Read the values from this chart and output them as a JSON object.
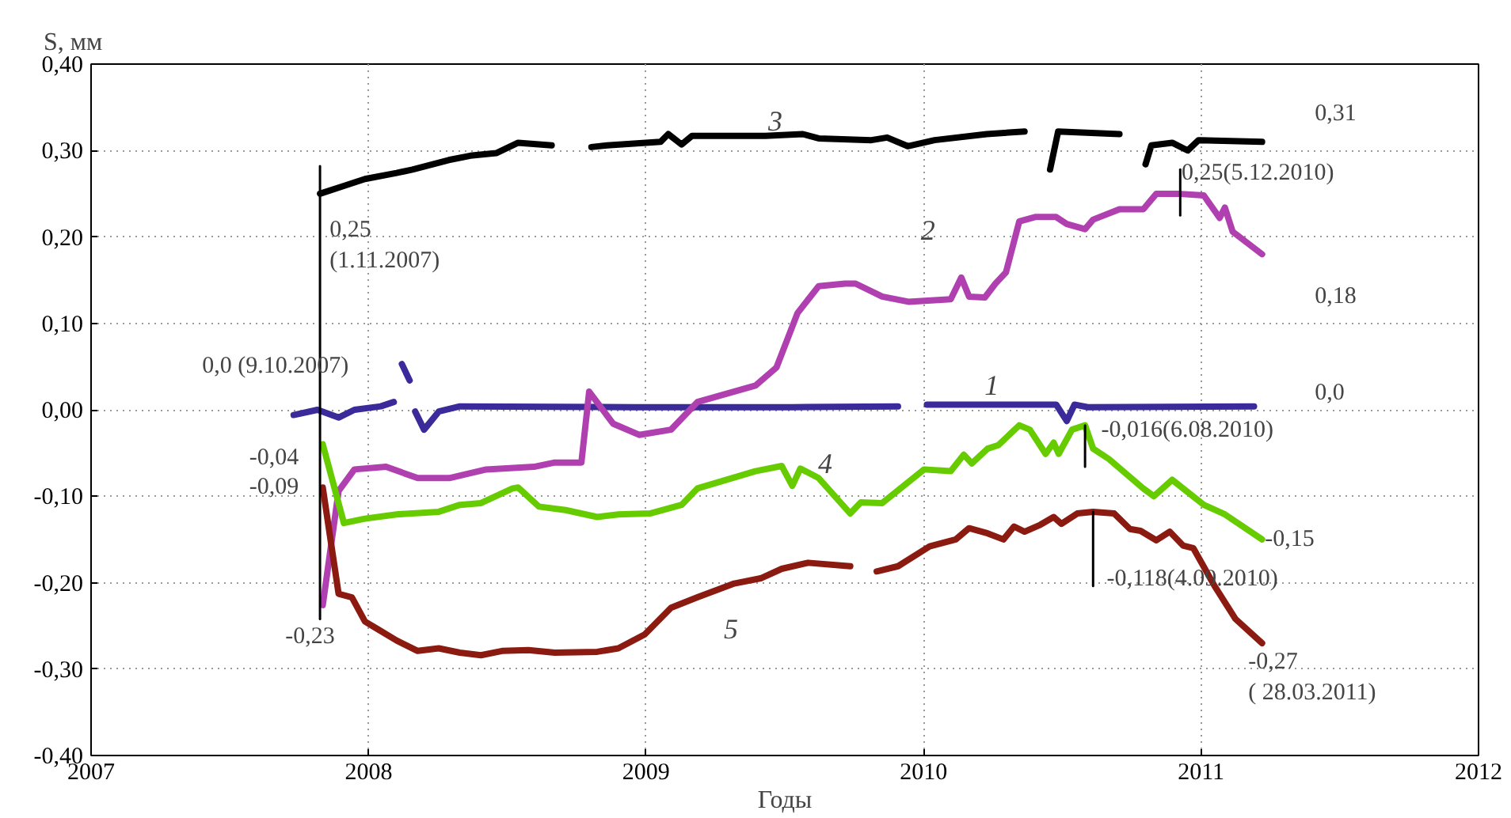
{
  "chart_data": {
    "type": "line",
    "xlabel": "Годы",
    "ylabel": "S, мм",
    "xlim": [
      2007,
      2012
    ],
    "xticks": [
      2007,
      2008,
      2009,
      2010,
      2011,
      2012
    ],
    "ylim": [
      -0.4,
      0.4
    ],
    "yticks": [
      {
        "value": -0.4,
        "label": "-0,40"
      },
      {
        "value": -0.3,
        "label": "-0,30"
      },
      {
        "value": -0.2,
        "label": "-0,20"
      },
      {
        "value": -0.1,
        "label": "-0,10"
      },
      {
        "value": 0,
        "label": "0,00"
      },
      {
        "value": 0.1,
        "label": "0,10"
      },
      {
        "value": 0.2,
        "label": "0,20"
      },
      {
        "value": 0.3,
        "label": "0,30"
      },
      {
        "value": 0.4,
        "label": "0,40"
      }
    ],
    "grid": true,
    "line_style": "solid",
    "marker": "none",
    "series": [
      {
        "color": "#3a2a9a",
        "x": [
          2007.73,
          2007.816,
          2007.892,
          2007.949,
          2008.044,
          2008.091,
          2008.105,
          2008.12,
          2008.148,
          2008.158,
          2008.168,
          2008.2,
          2008.253,
          2008.329,
          2008.957,
          2009.527,
          2009.908,
          2009.96,
          2010.012,
          2010.478,
          2010.516,
          2010.544,
          2010.592,
          2011.191
        ],
        "values": [
          -0.006,
          0.0,
          -0.009,
          0.0,
          0.004,
          0.009,
          null,
          0.053,
          0.034,
          null,
          -0.002,
          -0.023,
          -0.002,
          0.004,
          0.003,
          0.003,
          0.004,
          null,
          0.006,
          0.006,
          -0.013,
          0.006,
          0.003,
          0.004
        ]
      },
      {
        "color": "#b040b0",
        "x": [
          2007.835,
          2007.892,
          2007.949,
          2008.063,
          2008.177,
          2008.291,
          2008.424,
          2008.596,
          2008.671,
          2008.767,
          2008.795,
          2008.881,
          2008.975,
          2009.09,
          2009.185,
          2009.394,
          2009.47,
          2009.546,
          2009.622,
          2009.717,
          2009.755,
          2009.851,
          2009.945,
          2010.098,
          2010.136,
          2010.164,
          2010.221,
          2010.259,
          2010.297,
          2010.345,
          2010.402,
          2010.478,
          2010.516,
          2010.582,
          2010.611,
          2010.706,
          2010.792,
          2010.839,
          2010.915,
          2011.01,
          2011.067,
          2011.086,
          2011.114,
          2011.22
        ],
        "values": [
          -0.226,
          -0.094,
          -0.069,
          -0.066,
          -0.079,
          -0.079,
          -0.069,
          -0.066,
          -0.061,
          -0.061,
          0.021,
          -0.016,
          -0.029,
          -0.023,
          0.009,
          0.028,
          0.049,
          0.112,
          0.143,
          0.146,
          0.146,
          0.131,
          0.125,
          0.128,
          0.153,
          0.131,
          0.13,
          0.146,
          0.159,
          0.218,
          0.223,
          0.223,
          0.215,
          0.209,
          0.22,
          0.232,
          0.232,
          0.25,
          0.25,
          0.248,
          0.222,
          0.234,
          0.206,
          0.18
        ]
      },
      {
        "color": "#000000",
        "x": [
          2007.825,
          2007.911,
          2007.987,
          2008.101,
          2008.158,
          2008.289,
          2008.367,
          2008.46,
          2008.539,
          2008.66,
          2008.73,
          2008.803,
          2008.86,
          2009.052,
          2009.08,
          2009.128,
          2009.166,
          2009.43,
          2009.565,
          2009.622,
          2009.812,
          2009.869,
          2009.943,
          2010.04,
          2010.228,
          2010.364,
          2010.41,
          2010.456,
          2010.485,
          2010.706,
          2010.75,
          2010.8,
          2010.821,
          2010.896,
          2010.952,
          2010.991,
          2011.22
        ],
        "values": [
          0.25,
          0.259,
          0.267,
          0.274,
          0.278,
          0.289,
          0.294,
          0.297,
          0.309,
          0.306,
          null,
          0.304,
          0.306,
          0.31,
          0.319,
          0.307,
          0.317,
          0.317,
          0.319,
          0.314,
          0.312,
          0.315,
          0.305,
          0.312,
          0.319,
          0.322,
          null,
          0.278,
          0.322,
          0.319,
          null,
          0.284,
          0.306,
          0.309,
          0.3,
          0.312,
          0.31
        ]
      },
      {
        "color": "#66cc00",
        "x": [
          2007.835,
          2007.911,
          2007.987,
          2008.101,
          2008.253,
          2008.329,
          2008.405,
          2008.519,
          2008.539,
          2008.614,
          2008.71,
          2008.824,
          2008.9,
          2009.014,
          2009.128,
          2009.185,
          2009.394,
          2009.489,
          2009.527,
          2009.556,
          2009.622,
          2009.736,
          2009.774,
          2009.851,
          2010.002,
          2010.098,
          2010.145,
          2010.174,
          2010.231,
          2010.269,
          2010.345,
          2010.383,
          2010.44,
          2010.469,
          2010.487,
          2010.535,
          2010.582,
          2010.611,
          2010.668,
          2010.792,
          2010.83,
          2010.896,
          2011.01,
          2011.086,
          2011.22
        ],
        "values": [
          -0.04,
          -0.131,
          -0.126,
          -0.121,
          -0.118,
          -0.11,
          -0.108,
          -0.091,
          -0.09,
          -0.112,
          -0.116,
          -0.124,
          -0.121,
          -0.12,
          -0.11,
          -0.091,
          -0.071,
          -0.065,
          -0.088,
          -0.068,
          -0.079,
          -0.12,
          -0.107,
          -0.108,
          -0.069,
          -0.071,
          -0.052,
          -0.062,
          -0.045,
          -0.041,
          -0.018,
          -0.023,
          -0.051,
          -0.038,
          -0.051,
          -0.023,
          -0.018,
          -0.045,
          -0.057,
          -0.091,
          -0.1,
          -0.081,
          -0.11,
          -0.121,
          -0.15
        ]
      },
      {
        "color": "#8b1a10",
        "x": [
          2007.835,
          2007.892,
          2007.94,
          2007.987,
          2008.034,
          2008.101,
          2008.177,
          2008.253,
          2008.329,
          2008.405,
          2008.481,
          2008.576,
          2008.671,
          2008.824,
          2008.9,
          2008.995,
          2009.09,
          2009.185,
          2009.318,
          2009.413,
          2009.489,
          2009.584,
          2009.736,
          2009.78,
          2009.831,
          2009.908,
          2010.022,
          2010.116,
          2010.164,
          2010.231,
          2010.288,
          2010.326,
          2010.364,
          2010.421,
          2010.469,
          2010.497,
          2010.554,
          2010.611,
          2010.687,
          2010.744,
          2010.782,
          2010.839,
          2010.887,
          2010.935,
          2010.972,
          2011.049,
          2011.124,
          2011.22
        ],
        "values": [
          -0.09,
          -0.213,
          -0.217,
          -0.245,
          -0.254,
          -0.267,
          -0.279,
          -0.276,
          -0.281,
          -0.284,
          -0.279,
          -0.278,
          -0.281,
          -0.28,
          -0.276,
          -0.26,
          -0.229,
          -0.217,
          -0.201,
          -0.195,
          -0.184,
          -0.177,
          -0.181,
          null,
          -0.187,
          -0.181,
          -0.158,
          -0.15,
          -0.137,
          -0.143,
          -0.15,
          -0.135,
          -0.141,
          -0.133,
          -0.124,
          -0.132,
          -0.12,
          -0.118,
          -0.12,
          -0.138,
          -0.14,
          -0.151,
          -0.141,
          -0.157,
          -0.16,
          -0.204,
          -0.242,
          -0.27
        ]
      },
      {
        "color": "#000000",
        "x": [
          2007.825,
          2007.825
        ],
        "values": [
          0.282,
          -0.242
        ]
      },
      {
        "color": "#000000",
        "x": [
          2010.925,
          2010.925
        ],
        "values": [
          0.278,
          0.225
        ]
      },
      {
        "color": "#000000",
        "x": [
          2010.582,
          2010.582
        ],
        "values": [
          -0.018,
          -0.066
        ]
      },
      {
        "color": "#000000",
        "x": [
          2010.611,
          2010.611
        ],
        "values": [
          -0.118,
          -0.204
        ]
      }
    ],
    "annotations": [
      "3",
      "2",
      "1",
      "4",
      "5",
      "0,31",
      "0,25(5.12.2010)",
      "0,25\n(1.11.2007)",
      "0,18",
      "0,0 (9.10.2007)",
      "0,0",
      "-0,016(6.08.2010)",
      "-0,04",
      "-0,09",
      "-0,15",
      "-0,118(4.09.2010)",
      "-0,23",
      "-0,27\n( 28.03.2011)"
    ]
  }
}
